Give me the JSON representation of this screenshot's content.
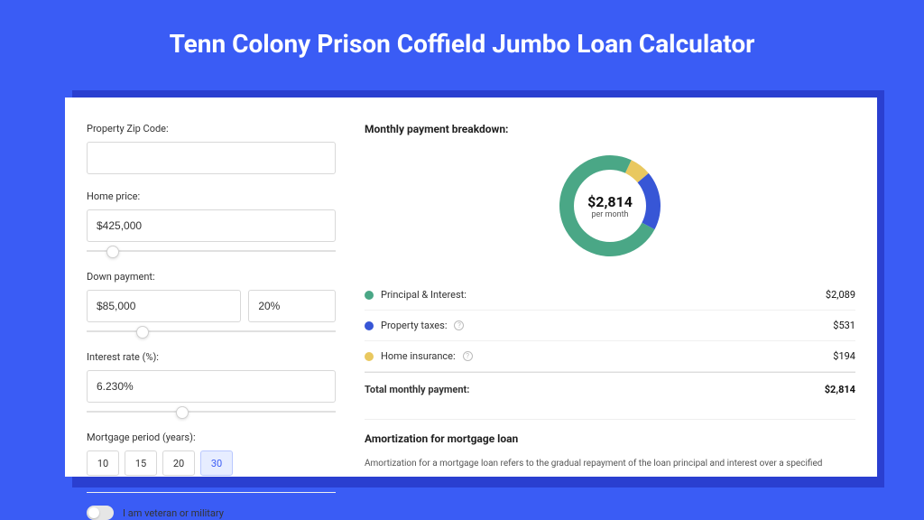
{
  "page": {
    "title": "Tenn Colony Prison Coffield Jumbo Loan Calculator",
    "background_color": "#3a5cf5",
    "shadow_color": "#2a3fd0",
    "panel_bg": "#ffffff"
  },
  "form": {
    "zip_label": "Property Zip Code:",
    "zip_value": "",
    "home_price_label": "Home price:",
    "home_price_value": "$425,000",
    "home_price_slider_pos_pct": 8,
    "down_label": "Down payment:",
    "down_value": "$85,000",
    "down_pct_value": "20%",
    "down_slider_pos_pct": 20,
    "rate_label": "Interest rate (%):",
    "rate_value": "6.230%",
    "rate_slider_pos_pct": 36,
    "period_label": "Mortgage period (years):",
    "period_options": [
      "10",
      "15",
      "20",
      "30"
    ],
    "period_selected": "30",
    "veteran_label": "I am veteran or military",
    "veteran_on": false
  },
  "breakdown": {
    "heading": "Monthly payment breakdown:",
    "donut": {
      "amount": "$2,814",
      "sub": "per month",
      "slices": [
        {
          "label": "principal",
          "value": 2089,
          "color": "#4aa786",
          "pct": 74.2
        },
        {
          "label": "taxes",
          "value": 531,
          "color": "#3756d6",
          "pct": 18.9
        },
        {
          "label": "insurance",
          "value": 194,
          "color": "#e9c85f",
          "pct": 6.9
        }
      ]
    },
    "rows": [
      {
        "dot": "#4aa786",
        "label": "Principal & Interest:",
        "info": false,
        "value": "$2,089"
      },
      {
        "dot": "#3756d6",
        "label": "Property taxes:",
        "info": true,
        "value": "$531"
      },
      {
        "dot": "#e9c85f",
        "label": "Home insurance:",
        "info": true,
        "value": "$194"
      }
    ],
    "total_label": "Total monthly payment:",
    "total_value": "$2,814"
  },
  "amortization": {
    "heading": "Amortization for mortgage loan",
    "text": "Amortization for a mortgage loan refers to the gradual repayment of the loan principal and interest over a specified"
  },
  "styling": {
    "input_border": "#d8d8d8",
    "label_fontsize": 11,
    "heading_fontsize": 12,
    "donut_size": 128,
    "donut_hole": 80
  }
}
